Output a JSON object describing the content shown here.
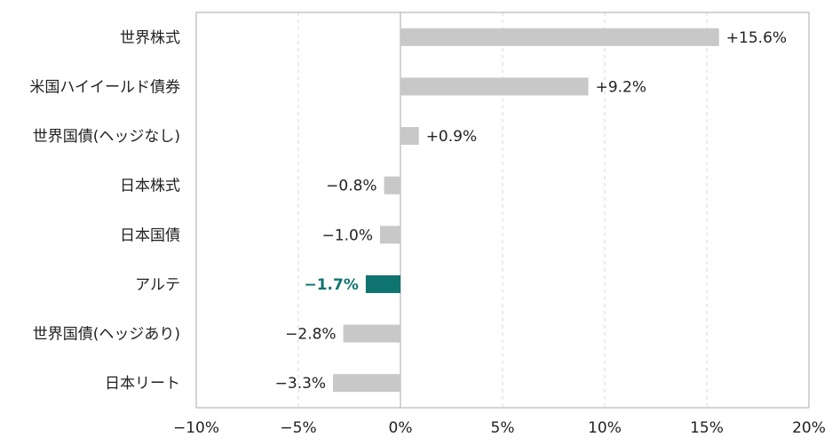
{
  "chart_data": {
    "type": "bar",
    "orientation": "horizontal",
    "categories": [
      "世界株式",
      "米国ハイイールド債券",
      "世界国債(ヘッジなし)",
      "日本株式",
      "日本国債",
      "アルテ",
      "世界国債(ヘッジあり)",
      "日本リート"
    ],
    "values": [
      15.6,
      9.2,
      0.9,
      -0.8,
      -1.0,
      -1.7,
      -2.8,
      -3.3
    ],
    "value_labels": [
      "+15.6%",
      "+9.2%",
      "+0.9%",
      "−0.8%",
      "−1.0%",
      "−1.7%",
      "−2.8%",
      "−3.3%"
    ],
    "highlight_index": 5,
    "xlim": [
      -10,
      20
    ],
    "xticks": [
      -10,
      -5,
      0,
      5,
      10,
      15,
      20
    ],
    "xtick_labels": [
      "−10%",
      "−5%",
      "0%",
      "5%",
      "10%",
      "15%",
      "20%"
    ],
    "grid": "vertical-dashed",
    "colors": {
      "bar": "#c8c8c8",
      "highlight": "#0f7470",
      "grid": "#d9d9d9",
      "axis": "#aaaaaa",
      "highlight_text": "#0f7470"
    }
  }
}
